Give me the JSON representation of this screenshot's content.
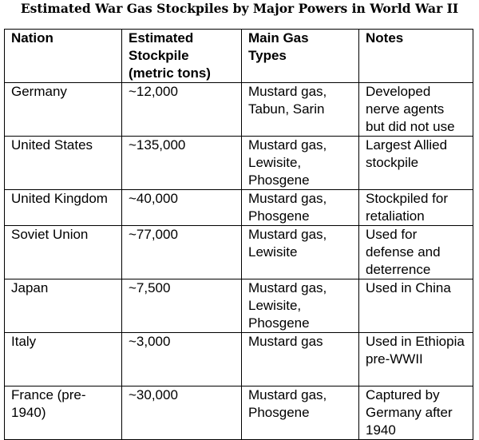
{
  "title": "Estimated War Gas Stockpiles by Major Powers in World War II",
  "table": {
    "header": [
      "Nation",
      "Estimated Stockpile (metric tons)",
      "Main Gas Types",
      "Notes"
    ],
    "rows": [
      [
        "Germany",
        "~12,000",
        "Mustard gas, Tabun, Sarin",
        "Developed nerve agents but did not use"
      ],
      [
        "United States",
        "~135,000",
        "Mustard gas, Lewisite, Phosgene",
        "Largest Allied stockpile"
      ],
      [
        "United Kingdom",
        "~40,000",
        "Mustard gas, Phosgene",
        "Stockpiled for retaliation"
      ],
      [
        "Soviet Union",
        "~77,000",
        "Mustard gas, Lewisite",
        "Used for defense and deterrence"
      ],
      [
        "Japan",
        "~7,500",
        "Mustard gas, Lewisite, Phosgene",
        "Used in China"
      ],
      [
        "Italy",
        "~3,000",
        "Mustard gas",
        "Used in Ethiopia pre-WWII"
      ],
      [
        "France (pre-1940)",
        "~30,000",
        "Mustard gas, Phosgene",
        "Captured by Germany after 1940"
      ]
    ]
  }
}
